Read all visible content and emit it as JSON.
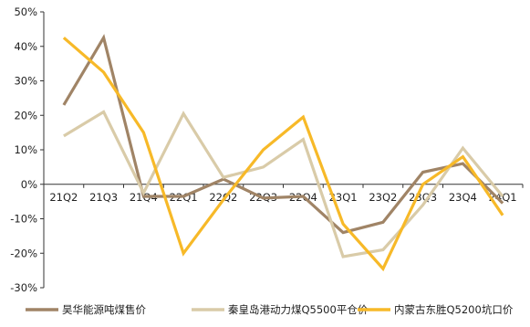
{
  "chart_data": {
    "type": "line",
    "x": [
      "21Q2",
      "21Q3",
      "21Q4",
      "22Q1",
      "22Q2",
      "22Q3",
      "22Q4",
      "23Q1",
      "23Q2",
      "23Q3",
      "23Q4",
      "24Q1"
    ],
    "ylim": [
      -30,
      50
    ],
    "yticks": [
      "50%",
      "40%",
      "30%",
      "20%",
      "10%",
      "0%",
      "-10%",
      "-20%",
      "-30%"
    ],
    "grid": false,
    "legend_position": "bottom",
    "series": [
      {
        "name": "昊华能源吨煤售价",
        "color": "#A08466",
        "values": [
          23,
          42.5,
          -3.5,
          -3.5,
          1.5,
          -4,
          -3.5,
          -14,
          -11,
          3.5,
          6,
          -5.5
        ]
      },
      {
        "name": "秦皇岛港动力煤Q5500平仓价",
        "color": "#D9CBA8",
        "values": [
          14,
          21,
          -2.5,
          20.5,
          2,
          5,
          13,
          -21,
          -19,
          -6,
          10.5,
          -3.5
        ]
      },
      {
        "name": "内蒙古东胜Q5200坑口价",
        "color": "#F7B928",
        "values": [
          42.5,
          32.5,
          15,
          -20,
          -4.5,
          10,
          19.5,
          -11.5,
          -24.5,
          0,
          8,
          -9
        ]
      }
    ]
  }
}
